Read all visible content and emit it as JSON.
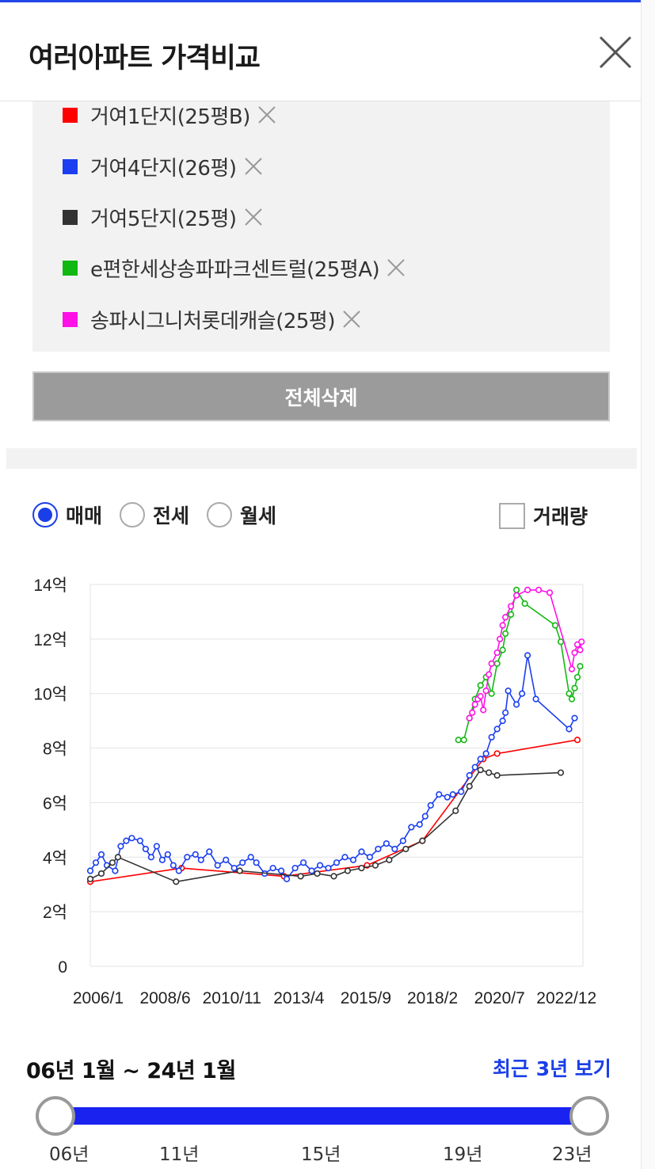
{
  "header": {
    "title": "여러아파트 가격비교"
  },
  "legend": [
    {
      "label": "거여1단지(25평B)",
      "color": "#ff0000"
    },
    {
      "label": "거여4단지(26평)",
      "color": "#1a3ef0"
    },
    {
      "label": "거여5단지(25평)",
      "color": "#333333"
    },
    {
      "label": "e편한세상송파파크센트럴(25평A)",
      "color": "#12b812"
    },
    {
      "label": "송파시그니처롯데캐슬(25평)",
      "color": "#ff10e6"
    }
  ],
  "delete_all_label": "전체삭제",
  "trade_types": [
    {
      "label": "매매",
      "selected": true
    },
    {
      "label": "전세",
      "selected": false
    },
    {
      "label": "월세",
      "selected": false
    }
  ],
  "volume_checkbox": {
    "label": "거래량",
    "checked": false
  },
  "chart_data": {
    "type": "line",
    "y_ticks": [
      "0",
      "2억",
      "4억",
      "6억",
      "8억",
      "10억",
      "12억",
      "14억"
    ],
    "x_ticks": [
      "2006/1",
      "2008/6",
      "2010/11",
      "2013/4",
      "2015/9",
      "2018/2",
      "2020/7",
      "2022/12"
    ],
    "ylim": [
      0,
      14
    ],
    "xlim": [
      2006.0,
      2023.8
    ],
    "grid": true,
    "series": [
      {
        "name": "거여1단지(25평B)",
        "color": "#ff0000",
        "points": [
          [
            2006.0,
            3.1
          ],
          [
            2009.3,
            3.6
          ],
          [
            2013.0,
            3.3
          ],
          [
            2016.0,
            3.7
          ],
          [
            2018.0,
            4.6
          ],
          [
            2020.2,
            7.6
          ],
          [
            2020.7,
            7.8
          ],
          [
            2023.6,
            8.3
          ]
        ]
      },
      {
        "name": "거여4단지(26평)",
        "color": "#1a3ef0",
        "points": [
          [
            2006.0,
            3.5
          ],
          [
            2006.2,
            3.8
          ],
          [
            2006.4,
            4.1
          ],
          [
            2006.6,
            3.7
          ],
          [
            2006.9,
            3.5
          ],
          [
            2007.1,
            4.4
          ],
          [
            2007.3,
            4.6
          ],
          [
            2007.5,
            4.7
          ],
          [
            2007.8,
            4.6
          ],
          [
            2008.0,
            4.3
          ],
          [
            2008.2,
            4.0
          ],
          [
            2008.4,
            4.4
          ],
          [
            2008.6,
            3.9
          ],
          [
            2008.8,
            4.1
          ],
          [
            2009.0,
            3.7
          ],
          [
            2009.2,
            3.5
          ],
          [
            2009.5,
            4.0
          ],
          [
            2009.8,
            4.1
          ],
          [
            2010.0,
            3.9
          ],
          [
            2010.3,
            4.2
          ],
          [
            2010.6,
            3.7
          ],
          [
            2010.9,
            3.9
          ],
          [
            2011.2,
            3.6
          ],
          [
            2011.5,
            3.8
          ],
          [
            2011.8,
            4.0
          ],
          [
            2012.0,
            3.8
          ],
          [
            2012.3,
            3.4
          ],
          [
            2012.6,
            3.6
          ],
          [
            2012.9,
            3.5
          ],
          [
            2013.1,
            3.2
          ],
          [
            2013.4,
            3.6
          ],
          [
            2013.7,
            3.8
          ],
          [
            2014.0,
            3.5
          ],
          [
            2014.3,
            3.7
          ],
          [
            2014.6,
            3.6
          ],
          [
            2014.9,
            3.8
          ],
          [
            2015.2,
            4.0
          ],
          [
            2015.5,
            3.9
          ],
          [
            2015.8,
            4.2
          ],
          [
            2016.1,
            4.0
          ],
          [
            2016.4,
            4.3
          ],
          [
            2016.7,
            4.5
          ],
          [
            2017.0,
            4.3
          ],
          [
            2017.3,
            4.6
          ],
          [
            2017.6,
            5.1
          ],
          [
            2017.9,
            5.2
          ],
          [
            2018.1,
            5.5
          ],
          [
            2018.3,
            5.9
          ],
          [
            2018.6,
            6.3
          ],
          [
            2018.9,
            6.2
          ],
          [
            2019.1,
            6.3
          ],
          [
            2019.4,
            6.4
          ],
          [
            2019.7,
            7.0
          ],
          [
            2019.9,
            7.3
          ],
          [
            2020.1,
            7.6
          ],
          [
            2020.3,
            7.8
          ],
          [
            2020.5,
            8.4
          ],
          [
            2020.7,
            8.7
          ],
          [
            2020.9,
            9.0
          ],
          [
            2021.0,
            9.3
          ],
          [
            2021.1,
            10.1
          ],
          [
            2021.4,
            9.6
          ],
          [
            2021.6,
            10.0
          ],
          [
            2021.8,
            11.4
          ],
          [
            2022.1,
            9.8
          ],
          [
            2023.3,
            8.7
          ],
          [
            2023.5,
            9.1
          ]
        ]
      },
      {
        "name": "거여5단지(25평)",
        "color": "#333333",
        "points": [
          [
            2006.0,
            3.2
          ],
          [
            2006.4,
            3.4
          ],
          [
            2006.8,
            3.8
          ],
          [
            2007.0,
            4.0
          ],
          [
            2009.1,
            3.1
          ],
          [
            2011.4,
            3.5
          ],
          [
            2013.6,
            3.3
          ],
          [
            2014.2,
            3.4
          ],
          [
            2014.8,
            3.3
          ],
          [
            2015.3,
            3.5
          ],
          [
            2015.8,
            3.6
          ],
          [
            2016.3,
            3.7
          ],
          [
            2016.8,
            3.9
          ],
          [
            2017.4,
            4.3
          ],
          [
            2018.0,
            4.6
          ],
          [
            2019.2,
            5.7
          ],
          [
            2019.7,
            6.6
          ],
          [
            2020.1,
            7.2
          ],
          [
            2020.4,
            7.1
          ],
          [
            2020.7,
            7.0
          ],
          [
            2023.0,
            7.1
          ]
        ]
      },
      {
        "name": "e편한세상송파파크센트럴(25평A)",
        "color": "#12b812",
        "points": [
          [
            2019.3,
            8.3
          ],
          [
            2019.5,
            8.3
          ],
          [
            2019.7,
            9.1
          ],
          [
            2019.9,
            9.8
          ],
          [
            2020.1,
            10.3
          ],
          [
            2020.3,
            10.6
          ],
          [
            2020.5,
            10.0
          ],
          [
            2020.7,
            11.1
          ],
          [
            2020.9,
            11.6
          ],
          [
            2021.0,
            12.2
          ],
          [
            2021.2,
            12.9
          ],
          [
            2021.4,
            13.8
          ],
          [
            2021.7,
            13.3
          ],
          [
            2022.8,
            12.5
          ],
          [
            2023.0,
            11.9
          ],
          [
            2023.3,
            10.0
          ],
          [
            2023.4,
            9.8
          ],
          [
            2023.5,
            10.2
          ],
          [
            2023.6,
            10.6
          ],
          [
            2023.7,
            11.0
          ]
        ]
      },
      {
        "name": "송파시그니처롯데캐슬(25평)",
        "color": "#ff10e6",
        "points": [
          [
            2019.7,
            9.1
          ],
          [
            2019.8,
            9.3
          ],
          [
            2019.9,
            9.6
          ],
          [
            2020.0,
            9.8
          ],
          [
            2020.1,
            9.9
          ],
          [
            2020.2,
            9.4
          ],
          [
            2020.3,
            10.1
          ],
          [
            2020.4,
            10.7
          ],
          [
            2020.5,
            11.1
          ],
          [
            2020.7,
            11.5
          ],
          [
            2020.8,
            12.0
          ],
          [
            2020.9,
            12.5
          ],
          [
            2021.0,
            12.8
          ],
          [
            2021.2,
            13.2
          ],
          [
            2021.4,
            13.6
          ],
          [
            2021.8,
            13.8
          ],
          [
            2022.2,
            13.8
          ],
          [
            2022.6,
            13.7
          ],
          [
            2023.4,
            10.9
          ],
          [
            2023.5,
            11.5
          ],
          [
            2023.6,
            11.8
          ],
          [
            2023.7,
            11.6
          ],
          [
            2023.75,
            11.9
          ]
        ]
      }
    ]
  },
  "range": {
    "text": "06년 1월 ~ 24년 1월",
    "recent_label": "최근 3년 보기"
  },
  "slider_ticks": [
    "06년",
    "11년",
    "15년",
    "19년",
    "23년"
  ]
}
